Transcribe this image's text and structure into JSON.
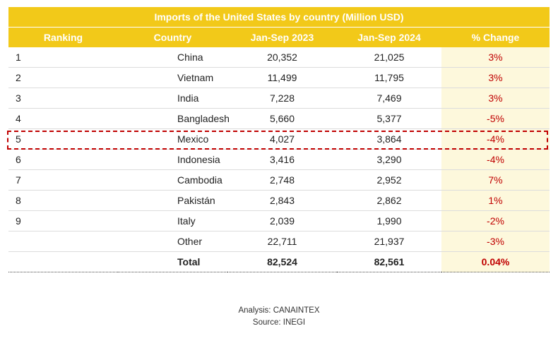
{
  "chart_data": {
    "type": "table",
    "title": "Imports of the United States by country (Million USD)",
    "columns": [
      "Ranking",
      "Country",
      "Jan-Sep 2023",
      "Jan-Sep 2024",
      "% Change"
    ],
    "rows": [
      {
        "rank": "1",
        "country": "China",
        "y2023": "20,352",
        "y2024": "21,025",
        "change": "3%"
      },
      {
        "rank": "2",
        "country": "Vietnam",
        "y2023": "11,499",
        "y2024": "11,795",
        "change": "3%"
      },
      {
        "rank": "3",
        "country": "India",
        "y2023": "7,228",
        "y2024": "7,469",
        "change": "3%"
      },
      {
        "rank": "4",
        "country": "Bangladesh",
        "y2023": "5,660",
        "y2024": "5,377",
        "change": "-5%"
      },
      {
        "rank": "5",
        "country": "Mexico",
        "y2023": "4,027",
        "y2024": "3,864",
        "change": "-4%"
      },
      {
        "rank": "6",
        "country": "Indonesia",
        "y2023": "3,416",
        "y2024": "3,290",
        "change": "-4%"
      },
      {
        "rank": "7",
        "country": "Cambodia",
        "y2023": "2,748",
        "y2024": "2,952",
        "change": "7%"
      },
      {
        "rank": "8",
        "country": "Pakistán",
        "y2023": "2,843",
        "y2024": "2,862",
        "change": "1%"
      },
      {
        "rank": "9",
        "country": "Italy",
        "y2023": "2,039",
        "y2024": "1,990",
        "change": "-2%"
      },
      {
        "rank": "",
        "country": "Other",
        "y2023": "22,711",
        "y2024": "21,937",
        "change": "-3%"
      }
    ],
    "total": {
      "label": "Total",
      "y2023": "82,524",
      "y2024": "82,561",
      "change": "0.04%"
    },
    "highlighted_country": "Mexico"
  },
  "colors": {
    "header": "#f2c919",
    "change_text": "#c00000",
    "change_bg": "#fdf8dc",
    "highlight": "#c00000"
  },
  "credits": {
    "analysis": "Analysis: CANAINTEX",
    "source": "Source: INEGI"
  }
}
